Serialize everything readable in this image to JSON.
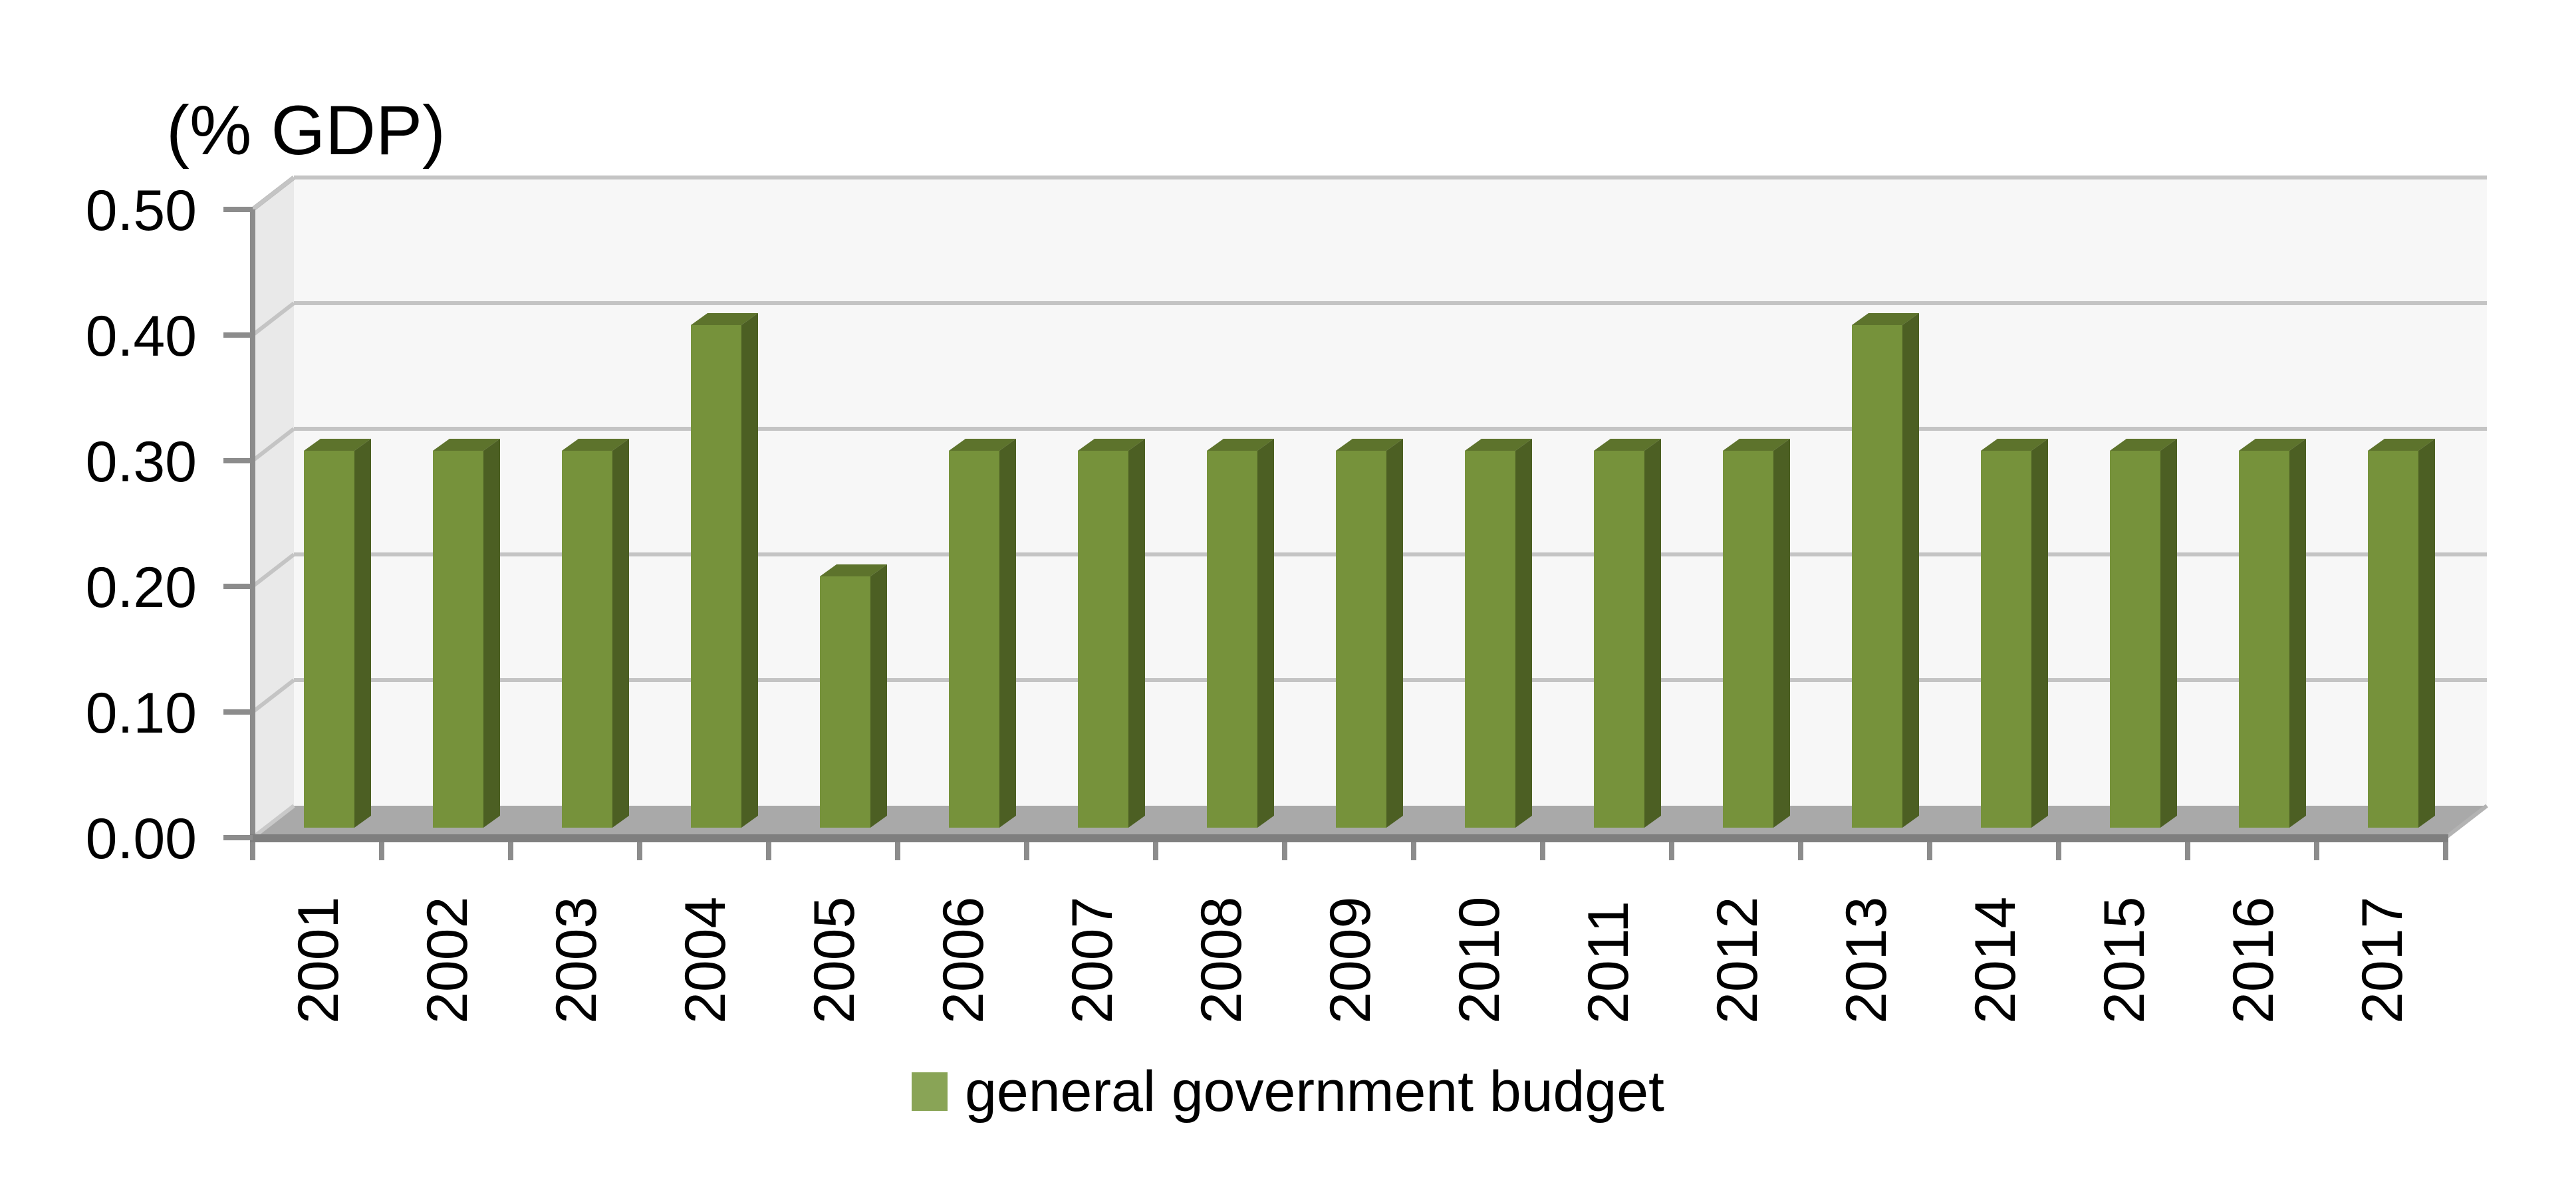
{
  "title": "(% GDP)",
  "legend": {
    "label": "general government budget"
  },
  "y_axis": {
    "tick_labels": [
      "0.00",
      "0.10",
      "0.20",
      "0.30",
      "0.40",
      "0.50"
    ]
  },
  "chart_data": {
    "type": "bar",
    "style": "3d-column",
    "title": "(% GDP)",
    "categories": [
      "2001",
      "2002",
      "2003",
      "2004",
      "2005",
      "2006",
      "2007",
      "2008",
      "2009",
      "2010",
      "2011",
      "2012",
      "2013",
      "2014",
      "2015",
      "2016",
      "2017"
    ],
    "series": [
      {
        "name": "general government budget",
        "values": [
          0.3,
          0.3,
          0.3,
          0.4,
          0.2,
          0.3,
          0.3,
          0.3,
          0.3,
          0.3,
          0.3,
          0.3,
          0.4,
          0.3,
          0.3,
          0.3,
          0.3
        ]
      }
    ],
    "ylabel": "(% GDP)",
    "ylim": [
      0,
      0.5
    ],
    "ytick_step": 0.1,
    "grid": true,
    "legend_position": "bottom",
    "x_labels_rotated_degrees": 90
  },
  "colors": {
    "bar_front": "#76923B",
    "bar_top": "#5D732C",
    "bar_side": "#4C5F23",
    "legend_marker": "#89A456",
    "plot_back_wall": "#F7F7F7",
    "plot_side_wall": "#E9E9E9",
    "floor": "#A9A9A9",
    "floor_front_edge": "#7F7F7F",
    "floor_edge_light": "#C9C9C9",
    "wall_edge": "#B3B3B3",
    "gridline": "#C4C4C4",
    "axis_line": "#8C8C8C",
    "text": "#000000",
    "background": "#FFFFFF"
  }
}
